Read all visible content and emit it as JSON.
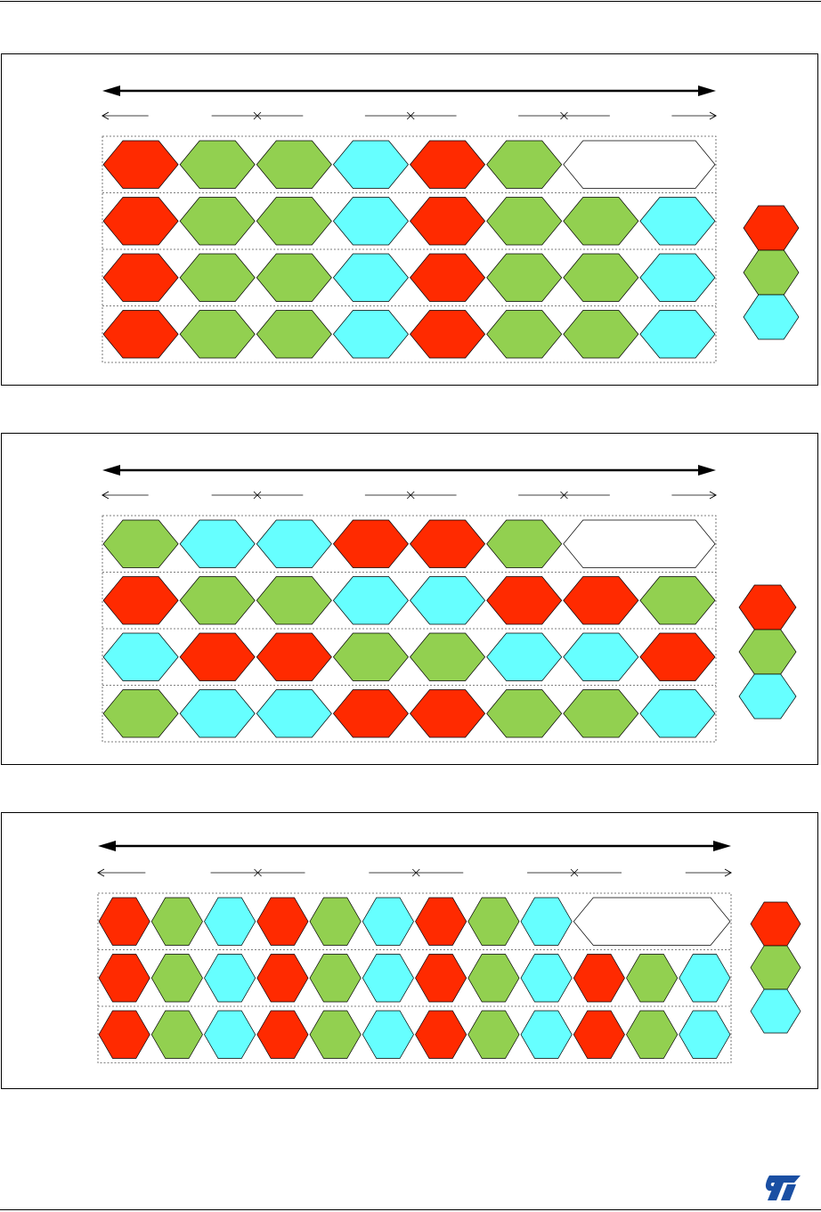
{
  "colors": {
    "red": "#ff2a00",
    "green": "#92d050",
    "cyan": "#66ffff",
    "empty": "#ffffff",
    "stroke": "#000000"
  },
  "logo": {
    "icon": "st-logo-icon",
    "text": "ST",
    "color": "#1a4fa3"
  },
  "diagrams": [
    {
      "id": "diagram-1",
      "rows": [
        [
          "red",
          "green",
          "green",
          "cyan",
          "red",
          "green",
          "empty"
        ],
        [
          "red",
          "green",
          "green",
          "cyan",
          "red",
          "green",
          "green",
          "cyan"
        ],
        [
          "red",
          "green",
          "green",
          "cyan",
          "red",
          "green",
          "green",
          "cyan"
        ],
        [
          "red",
          "green",
          "green",
          "cyan",
          "red",
          "green",
          "green",
          "cyan"
        ]
      ],
      "legend": [
        "red",
        "green",
        "cyan"
      ]
    },
    {
      "id": "diagram-2",
      "rows": [
        [
          "green",
          "cyan",
          "cyan",
          "red",
          "red",
          "green",
          "empty"
        ],
        [
          "red",
          "green",
          "green",
          "cyan",
          "cyan",
          "red",
          "red",
          "green"
        ],
        [
          "cyan",
          "red",
          "red",
          "green",
          "green",
          "cyan",
          "cyan",
          "red"
        ],
        [
          "green",
          "cyan",
          "cyan",
          "red",
          "red",
          "green",
          "green",
          "cyan"
        ]
      ],
      "legend": [
        "red",
        "green",
        "cyan"
      ]
    },
    {
      "id": "diagram-3",
      "rows": [
        [
          "red",
          "green",
          "cyan",
          "red",
          "green",
          "cyan",
          "red",
          "green",
          "cyan",
          "empty"
        ],
        [
          "red",
          "green",
          "cyan",
          "red",
          "green",
          "cyan",
          "red",
          "green",
          "cyan",
          "red",
          "green",
          "cyan"
        ],
        [
          "red",
          "green",
          "cyan",
          "red",
          "green",
          "cyan",
          "red",
          "green",
          "cyan",
          "red",
          "green",
          "cyan"
        ]
      ],
      "legend": [
        "red",
        "green",
        "cyan"
      ]
    }
  ]
}
